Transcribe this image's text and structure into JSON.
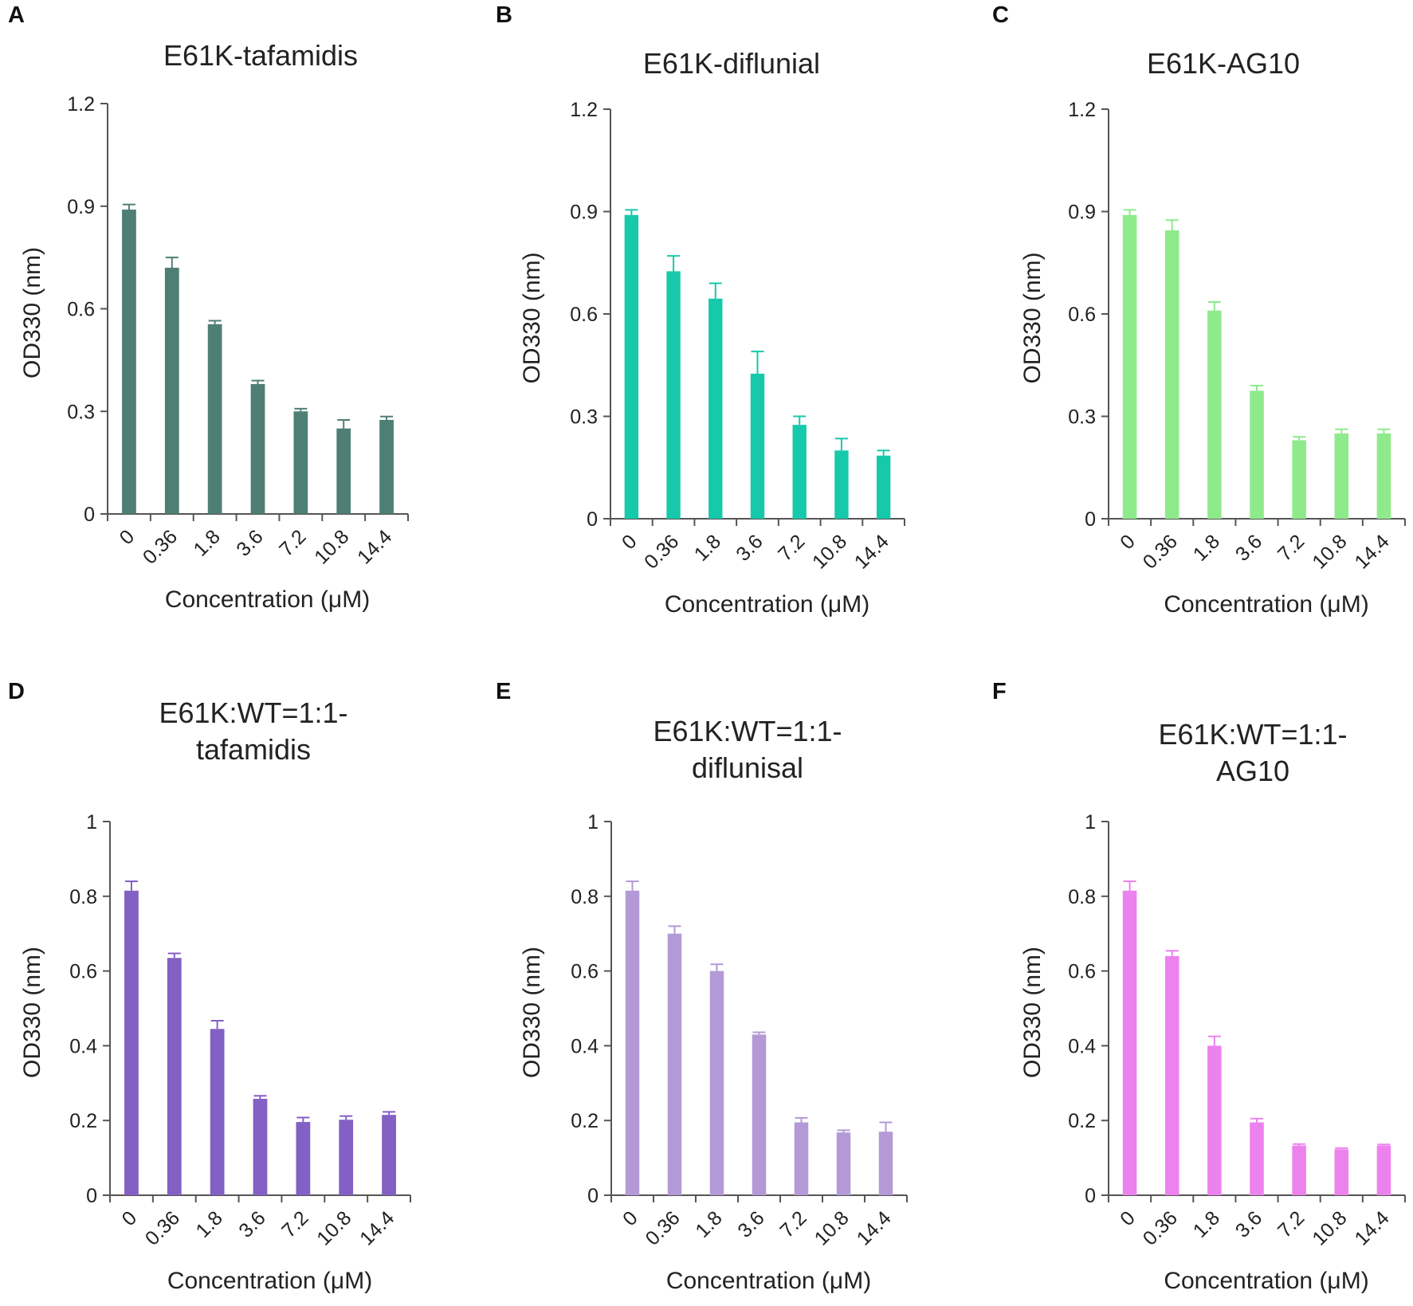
{
  "chart_data": [
    {
      "panel": "A",
      "type": "bar",
      "title": [
        "E61K-tafamidis"
      ],
      "xlabel": "Concentration (μM)",
      "ylabel": "OD330 (nm)",
      "categories": [
        "0",
        "0.36",
        "1.8",
        "3.6",
        "7.2",
        "10.8",
        "14.4"
      ],
      "values": [
        0.89,
        0.72,
        0.555,
        0.38,
        0.3,
        0.25,
        0.275
      ],
      "errors": [
        0.015,
        0.03,
        0.01,
        0.01,
        0.008,
        0.025,
        0.01
      ],
      "ylim": [
        0,
        1.2
      ],
      "yticks": [
        "0",
        "0.3",
        "0.6",
        "0.9",
        "1.2"
      ],
      "ytick_values": [
        0,
        0.3,
        0.6,
        0.9,
        1.2
      ],
      "color": "#4f7f74"
    },
    {
      "panel": "B",
      "type": "bar",
      "title": [
        "E61K-diflunial"
      ],
      "xlabel": "Concentration (μM)",
      "ylabel": "OD330 (nm)",
      "categories": [
        "0",
        "0.36",
        "1.8",
        "3.6",
        "7.2",
        "10.8",
        "14.4"
      ],
      "values": [
        0.89,
        0.725,
        0.645,
        0.425,
        0.275,
        0.2,
        0.185
      ],
      "errors": [
        0.015,
        0.045,
        0.045,
        0.065,
        0.025,
        0.035,
        0.015
      ],
      "ylim": [
        0,
        1.2
      ],
      "yticks": [
        "0",
        "0.3",
        "0.6",
        "0.9",
        "1.2"
      ],
      "ytick_values": [
        0,
        0.3,
        0.6,
        0.9,
        1.2
      ],
      "color": "#16c9aa"
    },
    {
      "panel": "C",
      "type": "bar",
      "title": [
        "E61K-AG10"
      ],
      "xlabel": "Concentration (μM)",
      "ylabel": "OD330 (nm)",
      "categories": [
        "0",
        "0.36",
        "1.8",
        "3.6",
        "7.2",
        "10.8",
        "14.4"
      ],
      "values": [
        0.89,
        0.845,
        0.61,
        0.375,
        0.23,
        0.25,
        0.25
      ],
      "errors": [
        0.015,
        0.03,
        0.025,
        0.015,
        0.01,
        0.012,
        0.012
      ],
      "ylim": [
        0,
        1.2
      ],
      "yticks": [
        "0",
        "0.3",
        "0.6",
        "0.9",
        "1.2"
      ],
      "ytick_values": [
        0,
        0.3,
        0.6,
        0.9,
        1.2
      ],
      "color": "#8fea8c"
    },
    {
      "panel": "D",
      "type": "bar",
      "title": [
        "E61K:WT=1:1-",
        "tafamidis"
      ],
      "xlabel": "Concentration (μM)",
      "ylabel": "OD330 (nm)",
      "categories": [
        "0",
        "0.36",
        "1.8",
        "3.6",
        "7.2",
        "10.8",
        "14.4"
      ],
      "values": [
        0.815,
        0.635,
        0.445,
        0.258,
        0.196,
        0.202,
        0.215
      ],
      "errors": [
        0.025,
        0.012,
        0.022,
        0.008,
        0.012,
        0.01,
        0.008
      ],
      "ylim": [
        0,
        1
      ],
      "yticks": [
        "0",
        "0.2",
        "0.4",
        "0.6",
        "0.8",
        "1"
      ],
      "ytick_values": [
        0,
        0.2,
        0.4,
        0.6,
        0.8,
        1
      ],
      "color": "#8360c3"
    },
    {
      "panel": "E",
      "type": "bar",
      "title": [
        "E61K:WT=1:1-",
        "diflunisal"
      ],
      "xlabel": "Concentration (μM)",
      "ylabel": "OD330 (nm)",
      "categories": [
        "0",
        "0.36",
        "1.8",
        "3.6",
        "7.2",
        "10.8",
        "14.4"
      ],
      "values": [
        0.815,
        0.7,
        0.6,
        0.43,
        0.195,
        0.168,
        0.17
      ],
      "errors": [
        0.025,
        0.02,
        0.018,
        0.006,
        0.012,
        0.006,
        0.025
      ],
      "ylim": [
        0,
        1
      ],
      "yticks": [
        "0",
        "0.2",
        "0.4",
        "0.6",
        "0.8",
        "1"
      ],
      "ytick_values": [
        0,
        0.2,
        0.4,
        0.6,
        0.8,
        1
      ],
      "color": "#b39ad6"
    },
    {
      "panel": "F",
      "type": "bar",
      "title": [
        "E61K:WT=1:1-",
        "AG10"
      ],
      "xlabel": "Concentration (μM)",
      "ylabel": "OD330 (nm)",
      "categories": [
        "0",
        "0.36",
        "1.8",
        "3.6",
        "7.2",
        "10.8",
        "14.4"
      ],
      "values": [
        0.815,
        0.64,
        0.4,
        0.195,
        0.133,
        0.123,
        0.133
      ],
      "errors": [
        0.025,
        0.014,
        0.025,
        0.01,
        0.004,
        0.003,
        0.003
      ],
      "ylim": [
        0,
        1
      ],
      "yticks": [
        "0",
        "0.2",
        "0.4",
        "0.6",
        "0.8",
        "1"
      ],
      "ytick_values": [
        0,
        0.2,
        0.4,
        0.6,
        0.8,
        1
      ],
      "color": "#ec82ee"
    }
  ]
}
